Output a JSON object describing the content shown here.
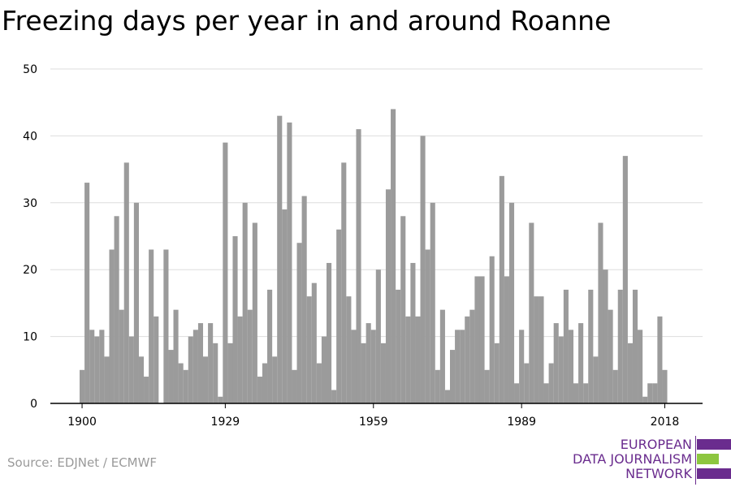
{
  "title": "Freezing days per year in and around Roanne",
  "source": "Source: EDJNet / ECMWF",
  "logo": {
    "line1": "EUROPEAN",
    "line2": "DATA JOURNALISM",
    "line3": "NETWORK",
    "colors": {
      "purple": "#6a2c8e",
      "green": "#8dc63f"
    }
  },
  "colors": {
    "bar": "#9b9b9b",
    "grid": "#dddddd",
    "axis": "#000000"
  },
  "chart_data": {
    "type": "bar",
    "title": "Freezing days per year in and around Roanne",
    "xlabel": "",
    "ylabel": "",
    "ylim": [
      0,
      50
    ],
    "yticks": [
      0,
      10,
      20,
      30,
      40,
      50
    ],
    "xticks": [
      1900,
      1929,
      1959,
      1989,
      2018
    ],
    "grid": true,
    "start_year": 1900,
    "values": [
      5,
      33,
      11,
      10,
      11,
      7,
      23,
      28,
      14,
      36,
      10,
      30,
      7,
      4,
      23,
      13,
      0,
      23,
      8,
      14,
      6,
      5,
      10,
      11,
      12,
      7,
      12,
      9,
      1,
      39,
      9,
      25,
      13,
      30,
      14,
      27,
      4,
      6,
      17,
      7,
      43,
      29,
      42,
      5,
      24,
      31,
      16,
      18,
      6,
      10,
      21,
      2,
      26,
      36,
      16,
      11,
      41,
      9,
      12,
      11,
      20,
      9,
      32,
      44,
      17,
      28,
      13,
      21,
      13,
      40,
      23,
      30,
      5,
      14,
      2,
      8,
      11,
      11,
      13,
      14,
      19,
      19,
      5,
      22,
      9,
      34,
      19,
      30,
      3,
      11,
      6,
      27,
      16,
      16,
      3,
      6,
      12,
      10,
      17,
      11,
      3,
      12,
      3,
      17,
      7,
      27,
      20,
      14,
      5,
      17,
      37,
      9,
      17,
      11,
      1,
      3,
      3,
      13,
      5
    ]
  }
}
